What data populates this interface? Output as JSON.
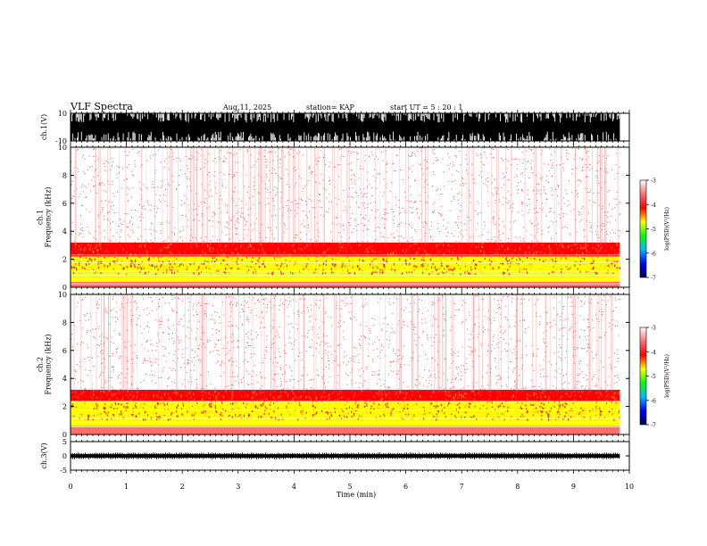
{
  "header": {
    "title": "VLF Spectra",
    "date": "Aug.11, 2025",
    "station": "station= KAP",
    "start": "start  UT  =   5  : 20 : 1"
  },
  "colorbar": {
    "label": "log(PSD)(V²/Hz)",
    "ticks": [
      "-3",
      "-4",
      "-5",
      "-6",
      "-7"
    ],
    "tick_values": [
      -3,
      -4,
      -5,
      -6,
      -7
    ],
    "colors": [
      "#ffffff",
      "#ff6e6e",
      "#ff0000",
      "#ffff00",
      "#00ff00",
      "#00b8ff",
      "#0000ff",
      "#000050"
    ]
  },
  "chart_data": [
    {
      "type": "line",
      "panel": "ch1-waveform",
      "ylabel": "ch.1(V)",
      "ylim": [
        -10,
        10
      ],
      "yticks": [
        "10",
        "-10"
      ],
      "xlim": [
        0,
        10
      ],
      "note_saturation": "signal fills full range, clipped at ±10",
      "time_end_min": 9.83,
      "series": [
        {
          "amplitude_min": -10,
          "amplitude_max": 10,
          "color": "#000000"
        }
      ]
    },
    {
      "type": "heatmap",
      "panel": "ch1-spectrogram",
      "ylabel": "ch.1\nFrequency (kHz)",
      "ylim": [
        0,
        10
      ],
      "yticks": [
        "0",
        "2",
        "4",
        "6",
        "8",
        "10"
      ],
      "xlim": [
        0,
        10
      ],
      "time_end_min": 9.83,
      "bands_khz": [
        {
          "from": 0.0,
          "to": 0.4,
          "log_psd": -3.8
        },
        {
          "from": 0.4,
          "to": 1.0,
          "log_psd": -4.6
        },
        {
          "from": 1.0,
          "to": 2.2,
          "log_psd": -4.5
        },
        {
          "from": 2.2,
          "to": 3.2,
          "log_psd": -3.9
        },
        {
          "from": 3.2,
          "to": 10.0,
          "log_psd": -3.2
        }
      ],
      "lines_khz": [
        0.25,
        0.55,
        0.85,
        1.15,
        1.75,
        2.3
      ]
    },
    {
      "type": "heatmap",
      "panel": "ch2-spectrogram",
      "ylabel": "ch.2\nFrequency (kHz)",
      "ylim": [
        0,
        10
      ],
      "yticks": [
        "0",
        "2",
        "4",
        "6",
        "8",
        "10"
      ],
      "xlim": [
        0,
        10
      ],
      "time_end_min": 9.83,
      "bands_khz": [
        {
          "from": 0.0,
          "to": 0.6,
          "log_psd": -3.8
        },
        {
          "from": 0.6,
          "to": 1.1,
          "log_psd": -4.5
        },
        {
          "from": 1.1,
          "to": 2.4,
          "log_psd": -4.5
        },
        {
          "from": 2.4,
          "to": 3.2,
          "log_psd": -3.9
        },
        {
          "from": 3.2,
          "to": 10.0,
          "log_psd": -3.2
        }
      ],
      "lines_khz": [
        0.55,
        0.85,
        1.15,
        1.75,
        2.3
      ]
    },
    {
      "type": "line",
      "panel": "ch3-waveform",
      "ylabel": "ch.3(V)",
      "ylim": [
        -5,
        5
      ],
      "yticks": [
        "5",
        "0",
        "-5"
      ],
      "xlim": [
        0,
        10
      ],
      "time_end_min": 9.83,
      "series": [
        {
          "amplitude_min": -0.6,
          "amplitude_max": 0.6,
          "color": "#000000"
        }
      ]
    }
  ],
  "xaxis": {
    "label": "Time  (min)",
    "ticks": [
      "0",
      "1",
      "2",
      "3",
      "4",
      "5",
      "6",
      "7",
      "8",
      "9",
      "10"
    ]
  }
}
